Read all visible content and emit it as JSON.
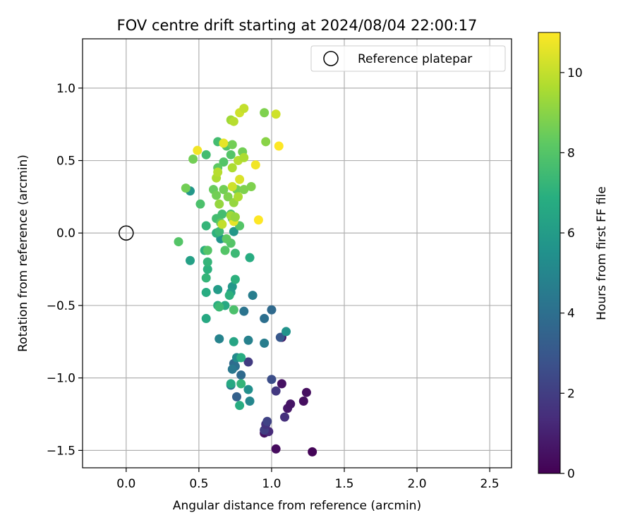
{
  "chart_data": {
    "type": "scatter",
    "title": "FOV centre drift starting at 2024/08/04 22:00:17",
    "xlabel": "Angular distance from reference (arcmin)",
    "ylabel": "Rotation from reference (arcmin)",
    "xlim": [
      -0.3,
      2.65
    ],
    "ylim": [
      -1.62,
      1.34
    ],
    "xticks": [
      "0.0",
      "0.5",
      "1.0",
      "1.5",
      "2.0",
      "2.5"
    ],
    "xtick_values": [
      0,
      0.5,
      1.0,
      1.5,
      2.0,
      2.5
    ],
    "yticks": [
      "−1.5",
      "−1.0",
      "−0.5",
      "0.0",
      "0.5",
      "1.0"
    ],
    "ytick_values": [
      -1.5,
      -1.0,
      -0.5,
      0,
      0.5,
      1.0
    ],
    "grid": true,
    "legend": {
      "position": "top-right",
      "entries": [
        "Reference platepar"
      ]
    },
    "reference_point": {
      "x": 0.0,
      "y": 0.0
    },
    "colorbar": {
      "label": "Hours from first FF file",
      "colormap": "viridis",
      "range": [
        0,
        11
      ],
      "ticks": [
        "0",
        "2",
        "4",
        "6",
        "8",
        "10"
      ],
      "tick_values": [
        0,
        2,
        4,
        6,
        8,
        10
      ]
    },
    "series": [
      {
        "points": [
          {
            "x": 1.28,
            "y": -1.51,
            "c": 0.1
          },
          {
            "x": 1.03,
            "y": -1.49,
            "c": 0.3
          },
          {
            "x": 0.95,
            "y": -1.38,
            "c": 0.5
          },
          {
            "x": 0.98,
            "y": -1.37,
            "c": 1.3
          },
          {
            "x": 0.95,
            "y": -1.36,
            "c": 2.0
          },
          {
            "x": 0.96,
            "y": -1.32,
            "c": 1.6
          },
          {
            "x": 0.97,
            "y": -1.3,
            "c": 2.2
          },
          {
            "x": 1.09,
            "y": -1.27,
            "c": 1.5
          },
          {
            "x": 1.11,
            "y": -1.21,
            "c": 0.7
          },
          {
            "x": 1.13,
            "y": -1.18,
            "c": 0.6
          },
          {
            "x": 1.22,
            "y": -1.16,
            "c": 0.4
          },
          {
            "x": 1.24,
            "y": -1.1,
            "c": 0.4
          },
          {
            "x": 1.03,
            "y": -1.09,
            "c": 1.8
          },
          {
            "x": 1.07,
            "y": -1.04,
            "c": 0.5
          },
          {
            "x": 1.0,
            "y": -1.01,
            "c": 2.6
          },
          {
            "x": 0.84,
            "y": -0.89,
            "c": 1.9
          },
          {
            "x": 1.07,
            "y": -0.72,
            "c": 0.4
          },
          {
            "x": 1.06,
            "y": -0.72,
            "c": 3.0
          },
          {
            "x": 0.76,
            "y": -1.13,
            "c": 3.4
          },
          {
            "x": 0.79,
            "y": -0.98,
            "c": 3.8
          },
          {
            "x": 0.74,
            "y": -0.9,
            "c": 3.8
          },
          {
            "x": 0.75,
            "y": -0.92,
            "c": 4.0
          },
          {
            "x": 0.73,
            "y": -0.94,
            "c": 4.4
          },
          {
            "x": 0.72,
            "y": -1.05,
            "c": 4.2
          },
          {
            "x": 1.0,
            "y": -0.53,
            "c": 3.8
          },
          {
            "x": 0.95,
            "y": -0.59,
            "c": 4.0
          },
          {
            "x": 0.95,
            "y": -0.76,
            "c": 4.6
          },
          {
            "x": 0.81,
            "y": -0.54,
            "c": 4.2
          },
          {
            "x": 0.87,
            "y": -0.43,
            "c": 4.6
          },
          {
            "x": 0.84,
            "y": -0.74,
            "c": 4.8
          },
          {
            "x": 0.64,
            "y": -0.73,
            "c": 4.9
          },
          {
            "x": 0.85,
            "y": -1.16,
            "c": 5.0
          },
          {
            "x": 0.84,
            "y": -1.08,
            "c": 5.4
          },
          {
            "x": 0.76,
            "y": -0.86,
            "c": 5.2
          },
          {
            "x": 1.1,
            "y": -0.68,
            "c": 5.6
          },
          {
            "x": 0.73,
            "y": -0.37,
            "c": 5.8
          },
          {
            "x": 0.72,
            "y": -0.41,
            "c": 6.0
          },
          {
            "x": 0.63,
            "y": -0.39,
            "c": 6.0
          },
          {
            "x": 0.74,
            "y": 0.01,
            "c": 5.8
          },
          {
            "x": 0.65,
            "y": -0.04,
            "c": 5.6
          },
          {
            "x": 0.44,
            "y": -0.19,
            "c": 6.2
          },
          {
            "x": 0.44,
            "y": 0.29,
            "c": 5.8
          },
          {
            "x": 0.74,
            "y": -0.75,
            "c": 6.4
          },
          {
            "x": 0.72,
            "y": -1.04,
            "c": 6.6
          },
          {
            "x": 0.78,
            "y": -1.19,
            "c": 6.8
          },
          {
            "x": 0.79,
            "y": -1.04,
            "c": 7.2
          },
          {
            "x": 0.79,
            "y": -0.86,
            "c": 6.8
          },
          {
            "x": 0.55,
            "y": -0.41,
            "c": 6.8
          },
          {
            "x": 0.55,
            "y": -0.59,
            "c": 6.6
          },
          {
            "x": 0.63,
            "y": -0.5,
            "c": 6.8
          },
          {
            "x": 0.68,
            "y": -0.5,
            "c": 6.6
          },
          {
            "x": 0.71,
            "y": -0.43,
            "c": 7.0
          },
          {
            "x": 0.75,
            "y": -0.32,
            "c": 7.0
          },
          {
            "x": 0.85,
            "y": -0.17,
            "c": 6.8
          },
          {
            "x": 0.56,
            "y": -0.25,
            "c": 7.0
          },
          {
            "x": 0.56,
            "y": -0.2,
            "c": 7.2
          },
          {
            "x": 0.54,
            "y": -0.12,
            "c": 7.0
          },
          {
            "x": 0.55,
            "y": -0.31,
            "c": 7.2
          },
          {
            "x": 0.75,
            "y": -0.14,
            "c": 7.4
          },
          {
            "x": 0.64,
            "y": -0.51,
            "c": 7.4
          },
          {
            "x": 0.62,
            "y": 0.0,
            "c": 7.0
          },
          {
            "x": 0.55,
            "y": 0.05,
            "c": 7.2
          },
          {
            "x": 0.64,
            "y": 0.01,
            "c": 7.4
          },
          {
            "x": 0.74,
            "y": -0.53,
            "c": 7.8
          },
          {
            "x": 0.72,
            "y": -0.07,
            "c": 8.0
          },
          {
            "x": 0.68,
            "y": -0.12,
            "c": 8.0
          },
          {
            "x": 0.56,
            "y": -0.12,
            "c": 8.0
          },
          {
            "x": 0.36,
            "y": -0.06,
            "c": 8.0
          },
          {
            "x": 0.69,
            "y": -0.04,
            "c": 8.2
          },
          {
            "x": 0.78,
            "y": 0.05,
            "c": 8.0
          },
          {
            "x": 0.66,
            "y": 0.13,
            "c": 7.6
          },
          {
            "x": 0.62,
            "y": 0.1,
            "c": 7.6
          },
          {
            "x": 0.72,
            "y": 0.13,
            "c": 7.8
          },
          {
            "x": 0.73,
            "y": 0.1,
            "c": 8.0
          },
          {
            "x": 0.65,
            "y": 0.07,
            "c": 8.2
          },
          {
            "x": 0.51,
            "y": 0.2,
            "c": 7.8
          },
          {
            "x": 0.55,
            "y": 0.54,
            "c": 7.6
          },
          {
            "x": 0.63,
            "y": 0.63,
            "c": 7.6
          },
          {
            "x": 0.69,
            "y": 0.6,
            "c": 8.0
          },
          {
            "x": 0.72,
            "y": 0.54,
            "c": 8.0
          },
          {
            "x": 0.67,
            "y": 0.49,
            "c": 8.0
          },
          {
            "x": 0.63,
            "y": 0.45,
            "c": 8.2
          },
          {
            "x": 0.41,
            "y": 0.31,
            "c": 8.6
          },
          {
            "x": 0.46,
            "y": 0.51,
            "c": 8.6
          },
          {
            "x": 0.6,
            "y": 0.3,
            "c": 8.4
          },
          {
            "x": 0.62,
            "y": 0.26,
            "c": 8.6
          },
          {
            "x": 0.67,
            "y": 0.3,
            "c": 8.6
          },
          {
            "x": 0.7,
            "y": 0.25,
            "c": 8.8
          },
          {
            "x": 0.76,
            "y": 0.3,
            "c": 8.6
          },
          {
            "x": 0.81,
            "y": 0.3,
            "c": 8.8
          },
          {
            "x": 0.86,
            "y": 0.32,
            "c": 8.8
          },
          {
            "x": 0.8,
            "y": 0.56,
            "c": 8.6
          },
          {
            "x": 0.73,
            "y": 0.61,
            "c": 8.6
          },
          {
            "x": 0.95,
            "y": 0.83,
            "c": 8.8
          },
          {
            "x": 0.96,
            "y": 0.63,
            "c": 9.0
          },
          {
            "x": 0.74,
            "y": 0.21,
            "c": 9.2
          },
          {
            "x": 0.64,
            "y": 0.2,
            "c": 9.2
          },
          {
            "x": 0.62,
            "y": 0.38,
            "c": 9.6
          },
          {
            "x": 0.63,
            "y": 0.42,
            "c": 9.8
          },
          {
            "x": 0.72,
            "y": 0.78,
            "c": 9.4
          },
          {
            "x": 0.74,
            "y": 0.77,
            "c": 9.8
          },
          {
            "x": 0.73,
            "y": 0.45,
            "c": 9.6
          },
          {
            "x": 0.77,
            "y": 0.5,
            "c": 9.8
          },
          {
            "x": 0.81,
            "y": 0.52,
            "c": 9.6
          },
          {
            "x": 0.78,
            "y": 0.83,
            "c": 10.2
          },
          {
            "x": 0.81,
            "y": 0.86,
            "c": 10.0
          },
          {
            "x": 0.77,
            "y": 0.25,
            "c": 9.6
          },
          {
            "x": 0.73,
            "y": 0.32,
            "c": 10.2
          },
          {
            "x": 0.78,
            "y": 0.37,
            "c": 10.4
          },
          {
            "x": 0.67,
            "y": 0.62,
            "c": 10.6
          },
          {
            "x": 0.89,
            "y": 0.47,
            "c": 10.8
          },
          {
            "x": 1.03,
            "y": 0.82,
            "c": 10.2
          },
          {
            "x": 0.49,
            "y": 0.57,
            "c": 10.8
          },
          {
            "x": 1.05,
            "y": 0.6,
            "c": 11.0
          },
          {
            "x": 0.91,
            "y": 0.09,
            "c": 11.0
          },
          {
            "x": 0.74,
            "y": 0.08,
            "c": 10.6
          },
          {
            "x": 0.66,
            "y": 0.06,
            "c": 10.0
          },
          {
            "x": 0.72,
            "y": 0.12,
            "c": 9.4
          },
          {
            "x": 0.75,
            "y": 0.11,
            "c": 9.2
          }
        ]
      }
    ]
  }
}
